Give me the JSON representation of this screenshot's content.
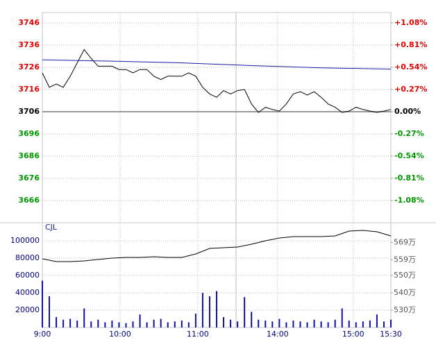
{
  "chart_data": [
    {
      "type": "line",
      "x": [
        0,
        2,
        4,
        6,
        8,
        10,
        12,
        14,
        16,
        18,
        20,
        22,
        24,
        26,
        28,
        30,
        32,
        34,
        36,
        38,
        40,
        42,
        44,
        46,
        48,
        50,
        52,
        54,
        56,
        58,
        60,
        62,
        64,
        66,
        68,
        70,
        72,
        74,
        76,
        78,
        80,
        82,
        84,
        86,
        88,
        90,
        92,
        94,
        96,
        98,
        100
      ],
      "series": [
        {
          "color": "#000000",
          "values": [
            3723.5,
            3717,
            3718.5,
            3717,
            3722,
            3728,
            3734,
            3730,
            3726.5,
            3726.5,
            3726.5,
            3725,
            3725,
            3723.5,
            3725,
            3725,
            3722,
            3720.5,
            3722,
            3722,
            3722,
            3723.5,
            3722,
            3717,
            3714,
            3712.5,
            3715.5,
            3714,
            3715.5,
            3716,
            3709.5,
            3705.7,
            3708,
            3707,
            3706.3,
            3709.5,
            3714,
            3715,
            3713.5,
            3715,
            3712.5,
            3709.5,
            3708,
            3705.7,
            3706.3,
            3708,
            3707,
            3706.3,
            3705.7,
            3706.3,
            3707
          ]
        },
        {
          "color": "#1a1aa8",
          "x": [
            0,
            20,
            40,
            60,
            80,
            100
          ],
          "values": [
            3729.4,
            3728.8,
            3728,
            3726.8,
            3725.8,
            3725.2
          ]
        }
      ],
      "xlim": [
        0,
        100
      ],
      "ylim": [
        3656,
        3750.7
      ],
      "yticks": [
        3666,
        3676,
        3686,
        3696,
        3706,
        3716,
        3726,
        3736,
        3746
      ],
      "y2lim": [
        -1.349,
        1.206
      ],
      "y2ticks": [
        {
          "value": -1.08,
          "label": "-1.08%"
        },
        {
          "value": -0.81,
          "label": "-0.81%"
        },
        {
          "value": -0.54,
          "label": "-0.54%"
        },
        {
          "value": -0.27,
          "label": "-0.27%"
        },
        {
          "value": 0,
          "label": "0.00%"
        },
        {
          "value": 0.27,
          "label": "+0.27%"
        },
        {
          "value": 0.54,
          "label": "+0.54%"
        },
        {
          "value": 0.81,
          "label": "+0.81%"
        },
        {
          "value": 1.08,
          "label": "+1.08%"
        }
      ],
      "baseline": 3706,
      "up_color": "#e00000",
      "down_color": "#009900",
      "grid": true
    },
    {
      "type": "bar",
      "label": "CJL",
      "x": [
        0,
        2,
        4,
        6,
        8,
        10,
        12,
        14,
        16,
        18,
        20,
        22,
        24,
        26,
        28,
        30,
        32,
        34,
        36,
        38,
        40,
        42,
        44,
        46,
        48,
        50,
        52,
        54,
        56,
        58,
        60,
        62,
        64,
        66,
        68,
        70,
        72,
        74,
        76,
        78,
        80,
        82,
        84,
        86,
        88,
        90,
        92,
        94,
        96,
        98,
        100
      ],
      "series": [
        {
          "type": "bar",
          "color": "#1010a0",
          "values": [
            54000,
            36000,
            12000,
            9000,
            10000,
            8000,
            22000,
            7000,
            9000,
            6000,
            8000,
            6000,
            5000,
            7000,
            15000,
            6000,
            9000,
            10000,
            6000,
            7000,
            8000,
            6000,
            16000,
            40000,
            36000,
            42000,
            12000,
            9000,
            7000,
            35000,
            18000,
            9000,
            8000,
            7000,
            10000,
            6000,
            8000,
            7000,
            6000,
            9000,
            7000,
            6000,
            9000,
            22000,
            8000,
            6000,
            7000,
            8000,
            15000,
            7000,
            9000
          ]
        },
        {
          "type": "line",
          "color": "#000000",
          "axis": "y2",
          "x": [
            0,
            4,
            8,
            12,
            16,
            20,
            24,
            28,
            32,
            36,
            40,
            44,
            48,
            52,
            56,
            60,
            64,
            68,
            72,
            76,
            80,
            84,
            88,
            92,
            96,
            100
          ],
          "values": [
            5596000,
            5580000,
            5580000,
            5584000,
            5592000,
            5600000,
            5604000,
            5604000,
            5608000,
            5604000,
            5604000,
            5624000,
            5656000,
            5660000,
            5664000,
            5680000,
            5700000,
            5716000,
            5724000,
            5724000,
            5724000,
            5728000,
            5756000,
            5760000,
            5752000,
            5728000
          ]
        }
      ],
      "xlim": [
        0,
        100
      ],
      "xticks": [
        {
          "value": 0,
          "label": "9:00"
        },
        {
          "value": 22.3,
          "label": "10:00"
        },
        {
          "value": 44.6,
          "label": "11:00"
        },
        {
          "value": 67.5,
          "label": "14:00"
        },
        {
          "value": 89.2,
          "label": "15:00"
        },
        {
          "value": 100,
          "label": "15:30"
        }
      ],
      "ylim": [
        0,
        120000
      ],
      "yticks": [
        20000,
        40000,
        60000,
        80000,
        100000
      ],
      "y2lim": [
        5200000,
        5800000
      ],
      "y2ticks": [
        {
          "value": 5300000,
          "label": "530万"
        },
        {
          "value": 5400000,
          "label": "540万"
        },
        {
          "value": 5500000,
          "label": "550万"
        },
        {
          "value": 5590000,
          "label": "559万"
        },
        {
          "value": 5690000,
          "label": "569万"
        }
      ],
      "grid": true
    }
  ]
}
